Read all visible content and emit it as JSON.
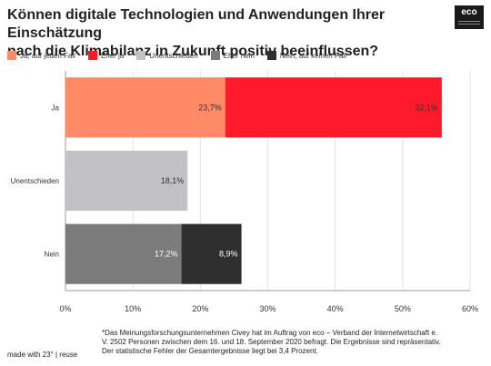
{
  "header": {
    "title_line1": "Können digitale Technologien und Anwendungen Ihrer Einschätzung",
    "title_line2": "nach die Klimabilanz in Zukunft positiv beeinflussen?"
  },
  "logo": {
    "text": "eco"
  },
  "chart_data": {
    "type": "bar",
    "orientation": "horizontal",
    "stacked": true,
    "categories": [
      "Ja",
      "Unentschieden",
      "Nein"
    ],
    "series": [
      {
        "name": "Ja, auf jeden Fall",
        "color": "#ff8a65",
        "values": [
          23.7,
          0,
          0
        ],
        "labels": [
          "23,7%",
          "",
          ""
        ],
        "label_color": "#333333"
      },
      {
        "name": "Eher ja",
        "color": "#ff1a2b",
        "values": [
          32.1,
          0,
          0
        ],
        "labels": [
          "32,1%",
          "",
          ""
        ],
        "label_color": "#333333"
      },
      {
        "name": "Unentschieden",
        "color": "#c2c2c4",
        "values": [
          0,
          18.1,
          0
        ],
        "labels": [
          "",
          "18,1%",
          ""
        ],
        "label_color": "#333333"
      },
      {
        "name": "Eher nein",
        "color": "#7b7b7b",
        "values": [
          0,
          0,
          17.2
        ],
        "labels": [
          "",
          "",
          "17,2%"
        ],
        "label_color": "#ffffff"
      },
      {
        "name": "Nein, auf keinen Fall",
        "color": "#2f2f2f",
        "values": [
          0,
          0,
          8.9
        ],
        "labels": [
          "",
          "",
          "8,9%"
        ],
        "label_color": "#ffffff"
      }
    ],
    "xlim": [
      0,
      60
    ],
    "xticks": [
      0,
      10,
      20,
      30,
      40,
      50,
      60
    ],
    "xtick_labels": [
      "0%",
      "10%",
      "20%",
      "30%",
      "40%",
      "50%",
      "60%"
    ],
    "grid": true,
    "legend_position": "top-left"
  },
  "footer": {
    "footnote_line1": "*Das Meinungsforschungsunternehmen Civey hat im Auftrag von eco – Verband der Internetwirtschaft e.",
    "footnote_line2": "V. 2502 Personen zwischen dem 16. und 18. September 2020 befragt. Die Ergebnisse sind repräsentativ.",
    "footnote_line3": "Der statistische Fehler der Gesamtergebnisse liegt bei 3,4 Prozent.",
    "made_with": "made with 23° | reuse"
  }
}
